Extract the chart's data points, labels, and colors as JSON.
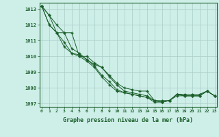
{
  "xlabel": "Graphe pression niveau de la mer (hPa)",
  "background_color": "#ceeee8",
  "grid_color": "#aaccc6",
  "line_color": "#1a5e2a",
  "ylim": [
    1006.8,
    1013.4
  ],
  "yticks": [
    1007,
    1008,
    1009,
    1010,
    1011,
    1012,
    1013
  ],
  "x_ticks": [
    0,
    1,
    2,
    3,
    4,
    5,
    6,
    7,
    8,
    9,
    10,
    11,
    12,
    13,
    14,
    15,
    16,
    17,
    18,
    19,
    20,
    21,
    22,
    23
  ],
  "series": [
    [
      1013.2,
      1012.6,
      1012.0,
      1011.5,
      1010.5,
      1010.2,
      1009.8,
      1009.5,
      1009.3,
      1008.8,
      1008.3,
      1008.0,
      1007.9,
      1007.8,
      1007.8,
      1007.2,
      1007.2,
      1007.2,
      1007.6,
      1007.6,
      1007.6,
      1007.6,
      1007.8,
      1007.5
    ],
    [
      1013.2,
      1012.0,
      1011.5,
      1010.6,
      1010.2,
      1010.1,
      1009.8,
      1009.4,
      1008.8,
      1008.4,
      1007.9,
      1007.7,
      1007.6,
      1007.5,
      1007.4,
      1007.2,
      1007.1,
      1007.2,
      1007.6,
      1007.5,
      1007.5,
      1007.5,
      1007.8,
      1007.5
    ],
    [
      1013.2,
      1012.0,
      1011.5,
      1010.9,
      1010.2,
      1010.0,
      1009.7,
      1009.3,
      1008.7,
      1008.2,
      1007.8,
      1007.7,
      1007.6,
      1007.5,
      1007.4,
      1007.1,
      1007.1,
      1007.2,
      1007.5,
      1007.5,
      1007.5,
      1007.5,
      1007.8,
      1007.5
    ],
    [
      1013.2,
      1012.6,
      1011.5,
      1011.5,
      1011.5,
      1010.0,
      1010.0,
      1009.6,
      1009.3,
      1008.7,
      1008.2,
      1007.8,
      1007.7,
      1007.6,
      1007.5,
      1007.2,
      1007.1,
      1007.2,
      1007.6,
      1007.5,
      1007.5,
      1007.5,
      1007.8,
      1007.5
    ]
  ]
}
